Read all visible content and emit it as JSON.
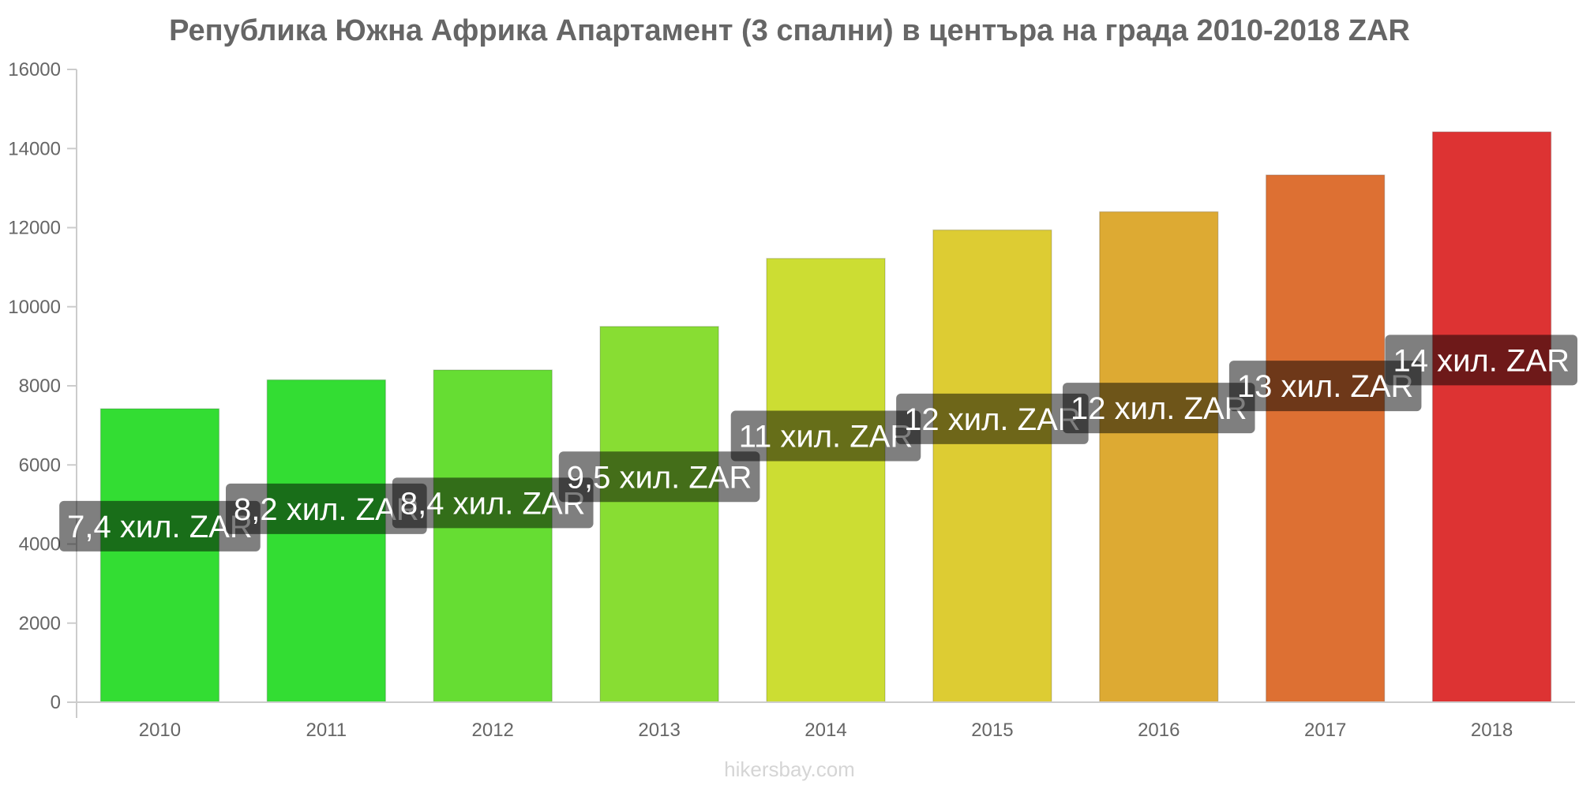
{
  "chart_data": {
    "type": "bar",
    "title": "Република Южна Африка Апартамент (3 спални) в центъра на града 2010-2018 ZAR",
    "xlabel": "",
    "ylabel": "",
    "categories": [
      "2010",
      "2011",
      "2012",
      "2013",
      "2014",
      "2015",
      "2016",
      "2017",
      "2018"
    ],
    "values": [
      7420,
      8150,
      8400,
      9500,
      11220,
      11940,
      12400,
      13330,
      14420
    ],
    "data_labels": [
      "7,4 хил. ZAR",
      "8,2 хил. ZAR",
      "8,4 хил. ZAR",
      "9,5 хил. ZAR",
      "11 хил. ZAR",
      "12 хил. ZAR",
      "12 хил. ZAR",
      "13 хил. ZAR",
      "14 хил. ZAR"
    ],
    "bar_colors": [
      "#33dd33",
      "#33dd33",
      "#66dd33",
      "#88dd33",
      "#ccdd33",
      "#ddcc33",
      "#ddaa33",
      "#dd7033",
      "#dd3333"
    ],
    "y_ticks": [
      0,
      2000,
      4000,
      6000,
      8000,
      10000,
      12000,
      14000,
      16000
    ],
    "ylim": [
      0,
      16000
    ],
    "grid": false,
    "legend": "none"
  },
  "watermark": "hikersbay.com"
}
